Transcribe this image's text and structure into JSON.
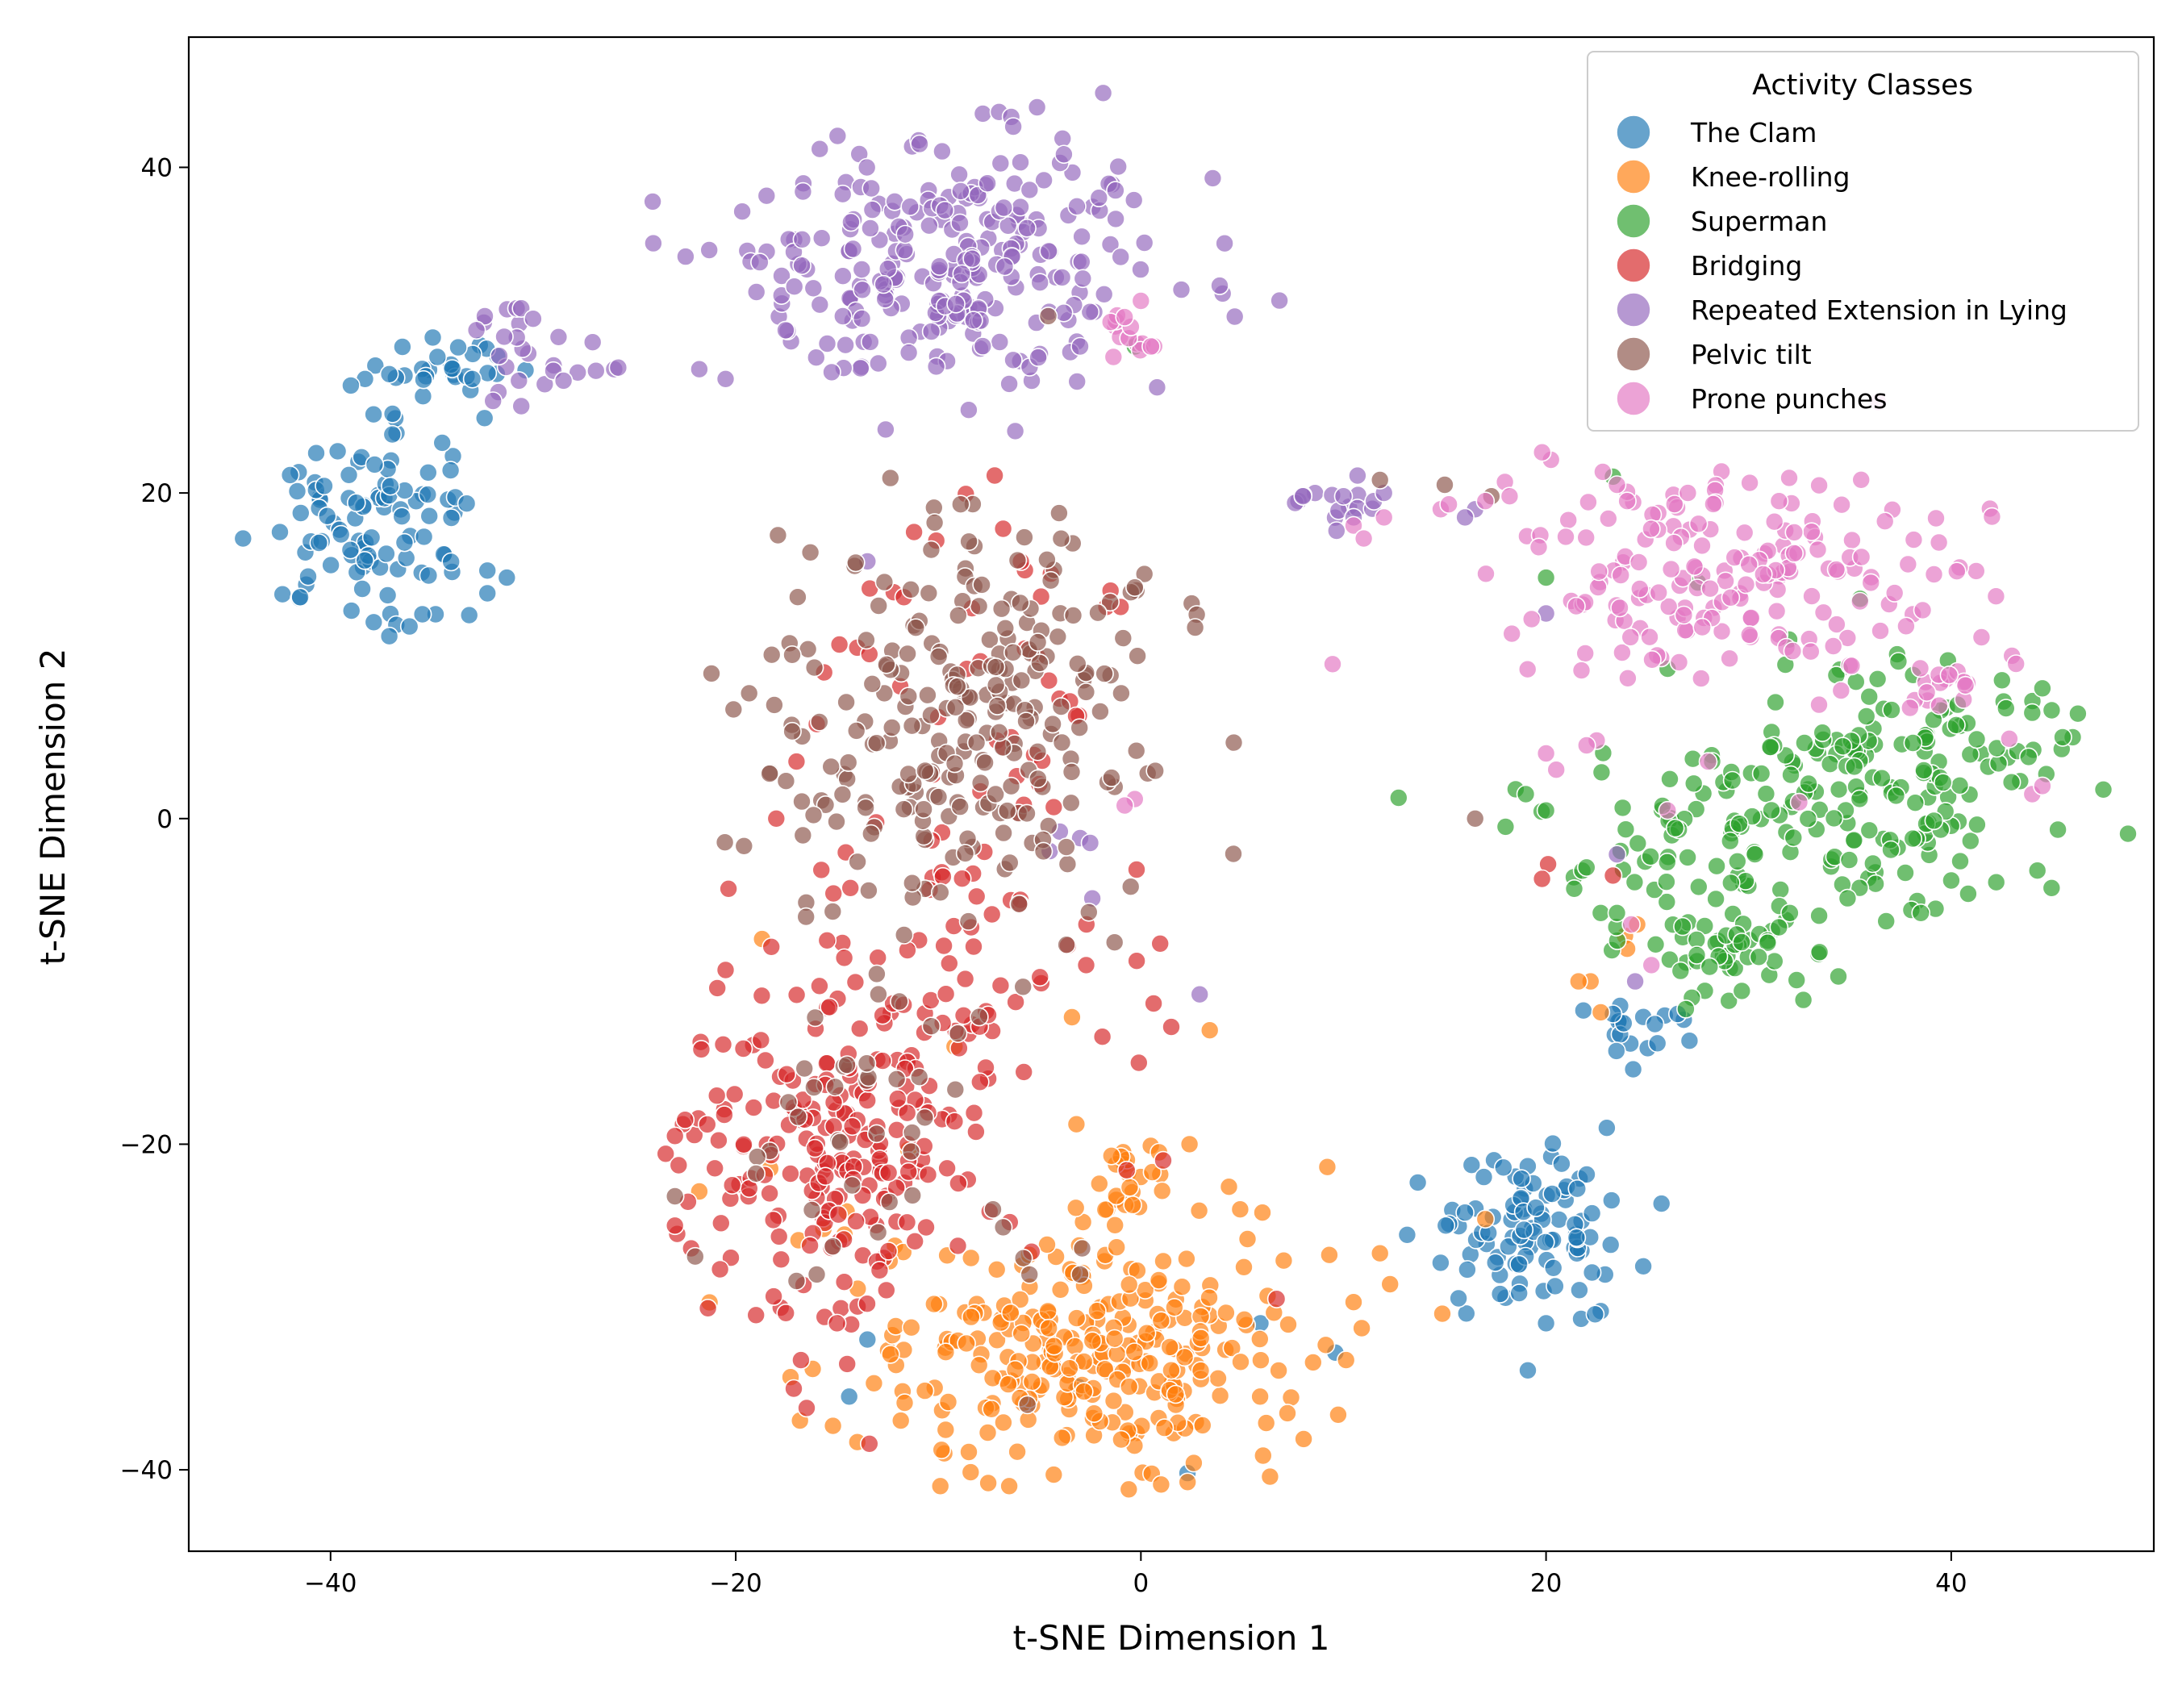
{
  "chart_data": {
    "type": "scatter",
    "title": "",
    "xlabel": "t-SNE Dimension 1",
    "ylabel": "t-SNE Dimension 2",
    "xlim": [
      -47,
      50
    ],
    "ylim": [
      -45,
      48
    ],
    "xticks": [
      -40,
      -20,
      0,
      20,
      40
    ],
    "yticks": [
      -40,
      -20,
      0,
      20,
      40
    ],
    "xtick_labels": [
      "−40",
      "−20",
      "0",
      "20",
      "40"
    ],
    "ytick_labels": [
      "−40",
      "−20",
      "0",
      "20",
      "40"
    ],
    "grid": false,
    "legend": {
      "title": "Activity Classes",
      "placement": "top-right"
    },
    "series": [
      {
        "name": "The Clam",
        "color": "#1f77b4",
        "approx_point_count": 260,
        "clusters": [
          {
            "center": [
              -38,
              18.5
            ],
            "spread": [
              2.3,
              3.3
            ],
            "weight": 0.34
          },
          {
            "center": [
              19.5,
              -25.5
            ],
            "spread": [
              2.6,
              2.6
            ],
            "weight": 0.32
          },
          {
            "center": [
              -34,
              27.5
            ],
            "spread": [
              1.6,
              0.9
            ],
            "weight": 0.09
          },
          {
            "center": [
              25,
              -13
            ],
            "spread": [
              1.3,
              1.0
            ],
            "weight": 0.05
          }
        ],
        "points": [
          [
            -42.5,
            17.6
          ],
          [
            -37.1,
            11.2
          ],
          [
            -31.3,
            14.8
          ],
          [
            -38.3,
            27.0
          ],
          [
            -37.1,
            27.3
          ],
          [
            -32.4,
            24.6
          ],
          [
            -33.0,
            27.0
          ],
          [
            -35.2,
            19.9
          ],
          [
            -39.0,
            26.6
          ],
          [
            16,
            -24.2
          ],
          [
            23,
            -19
          ],
          [
            24.8,
            -27.5
          ],
          [
            20,
            -31
          ],
          [
            23.3,
            -12.0
          ],
          [
            24.3,
            -15.4
          ],
          [
            26.5,
            -12.0
          ],
          [
            25.5,
            -13.8
          ],
          [
            5.9,
            -31.0
          ],
          [
            9.6,
            -32.8
          ],
          [
            -13.5,
            -32.0
          ],
          [
            -3.1,
            -34.9
          ],
          [
            2.3,
            -40.2
          ],
          [
            -14.4,
            -35.5
          ],
          [
            19.5,
            -23.9
          ],
          [
            -41.5,
            13.6
          ],
          [
            -36.1,
            11.8
          ]
        ]
      },
      {
        "name": "Knee-rolling",
        "color": "#ff7f0e",
        "approx_point_count": 330,
        "clusters": [
          {
            "center": [
              -3,
              -33
            ],
            "spread": [
              5.5,
              3.6
            ],
            "weight": 0.78
          },
          {
            "center": [
              -1,
              -22.5
            ],
            "spread": [
              1.6,
              1.8
            ],
            "weight": 0.08
          }
        ],
        "points": [
          [
            -18.7,
            -7.4
          ],
          [
            -21.8,
            -22.9
          ],
          [
            -18.3,
            -21.5
          ],
          [
            -16.9,
            -25.9
          ],
          [
            -16.2,
            -33.8
          ],
          [
            -9.2,
            -14.0
          ],
          [
            -3.4,
            -12.2
          ],
          [
            3.4,
            -13.0
          ],
          [
            9.2,
            -21.4
          ],
          [
            6,
            -24.2
          ],
          [
            9.3,
            -26.8
          ],
          [
            10.5,
            -29.7
          ],
          [
            11.8,
            -26.7
          ],
          [
            12.3,
            -28.6
          ],
          [
            10.9,
            -31.3
          ],
          [
            8.5,
            -33.4
          ],
          [
            6.8,
            -33.9
          ],
          [
            4.9,
            -24.0
          ],
          [
            2.4,
            -20.0
          ],
          [
            0.9,
            -20.5
          ],
          [
            -0.6,
            -41.2
          ],
          [
            1.0,
            -40.9
          ],
          [
            -6.5,
            -41.0
          ],
          [
            -4.3,
            -40.3
          ],
          [
            22.2,
            -10
          ],
          [
            21.6,
            -10
          ],
          [
            22.7,
            -11.9
          ],
          [
            23.9,
            -7.2
          ],
          [
            24.5,
            -6.5
          ],
          [
            24.0,
            -8.0
          ],
          [
            17.0,
            -24.6
          ],
          [
            -15.2,
            -37.3
          ],
          [
            -9.9,
            -41.0
          ]
        ]
      },
      {
        "name": "Superman",
        "color": "#2ca02c",
        "approx_point_count": 300,
        "clusters": [
          {
            "center": [
              37.5,
              3.5
            ],
            "spread": [
              4.0,
              3.2
            ],
            "weight": 0.45
          },
          {
            "center": [
              30,
              -3
            ],
            "spread": [
              5.5,
              3.6
            ],
            "weight": 0.35
          },
          {
            "center": [
              29,
              -8.5
            ],
            "spread": [
              2.0,
              1.2
            ],
            "weight": 0.1
          }
        ],
        "points": [
          [
            46.0,
            5.0
          ],
          [
            45.5,
            5.0
          ],
          [
            44.5,
            8.0
          ],
          [
            44.0,
            6.5
          ],
          [
            18.5,
            1.8
          ],
          [
            19.0,
            1.5
          ],
          [
            20.0,
            0.5
          ],
          [
            18.0,
            -0.5
          ],
          [
            22.0,
            -3.0
          ],
          [
            22.7,
            -5.8
          ],
          [
            23.5,
            -5.8
          ],
          [
            26.0,
            9.2
          ],
          [
            32.0,
            11.0
          ],
          [
            35.5,
            13.5
          ],
          [
            -0.3,
            29.0
          ],
          [
            23.3,
            21.0
          ],
          [
            20.0,
            14.8
          ],
          [
            30.5,
            -8.5
          ],
          [
            33.5,
            -8.2
          ],
          [
            38.5,
            -5.8
          ],
          [
            27.2,
            -11.0
          ],
          [
            26.9,
            -11.7
          ],
          [
            40.0,
            -3.8
          ],
          [
            27.5,
            14.5
          ]
        ]
      },
      {
        "name": "Bridging",
        "color": "#d62728",
        "approx_point_count": 330,
        "clusters": [
          {
            "center": [
              -15,
              -20
            ],
            "spread": [
              4.0,
              5.0
            ],
            "weight": 0.7
          },
          {
            "center": [
              -9,
              -6
            ],
            "spread": [
              3.5,
              4.0
            ],
            "weight": 0.15
          },
          {
            "center": [
              -8,
              8
            ],
            "spread": [
              3.0,
              5.0
            ],
            "weight": 0.1
          }
        ],
        "points": [
          [
            -18,
            0
          ],
          [
            -17,
            3.5
          ],
          [
            -16,
            5.8
          ],
          [
            -14,
            10.5
          ],
          [
            -13.4,
            10.1
          ],
          [
            -12.2,
            13.9
          ],
          [
            -11.7,
            13.6
          ],
          [
            -11.2,
            17.6
          ],
          [
            -6.8,
            17.8
          ],
          [
            -3.5,
            7.2
          ],
          [
            -3.2,
            6.3
          ],
          [
            -4.3,
            0.7
          ],
          [
            -3.6,
            -7.8
          ],
          [
            -2.7,
            -9.0
          ],
          [
            -1.9,
            -13.4
          ],
          [
            -0.1,
            -15.0
          ],
          [
            -0.7,
            -21.6
          ],
          [
            1.1,
            -21.0
          ],
          [
            -20.5,
            -9.3
          ],
          [
            -22.5,
            -18.5
          ],
          [
            -23.0,
            -19.5
          ],
          [
            -22.2,
            -26.4
          ],
          [
            -23.0,
            -25.0
          ],
          [
            -16.5,
            -36.2
          ],
          [
            -13.4,
            -38.4
          ],
          [
            -14.5,
            -33.5
          ],
          [
            -19.0,
            -30.5
          ],
          [
            -15.0,
            -31.0
          ],
          [
            1.5,
            -12.8
          ],
          [
            6.7,
            -29.5
          ],
          [
            20.1,
            -2.8
          ],
          [
            19.8,
            -3.7
          ],
          [
            23.3,
            -3.5
          ],
          [
            -1.7,
            13.0
          ],
          [
            -1.0,
            13.0
          ],
          [
            -1.5,
            14.0
          ]
        ]
      },
      {
        "name": "Repeated Extension in Lying",
        "color": "#9467bd",
        "approx_point_count": 330,
        "clusters": [
          {
            "center": [
              -9.5,
              34.5
            ],
            "spread": [
              5.5,
              4.0
            ],
            "weight": 0.82
          },
          {
            "center": [
              -31,
              28.5
            ],
            "spread": [
              1.5,
              1.5
            ],
            "weight": 0.06
          },
          {
            "center": [
              9.5,
              19.2
            ],
            "spread": [
              1.5,
              0.8
            ],
            "weight": 0.04
          }
        ],
        "points": [
          [
            -27.8,
            27.4
          ],
          [
            -26.9,
            27.5
          ],
          [
            -26.0,
            27.6
          ],
          [
            -25.8,
            27.7
          ],
          [
            -21.8,
            27.6
          ],
          [
            -20.5,
            27.0
          ],
          [
            -29.0,
            27.5
          ],
          [
            -28.5,
            26.9
          ],
          [
            -30.7,
            26.9
          ],
          [
            -32.8,
            30.0
          ],
          [
            -30.0,
            30.7
          ],
          [
            -12.6,
            23.9
          ],
          [
            -6.2,
            23.8
          ],
          [
            -8.5,
            25.1
          ],
          [
            -7.8,
            43.3
          ],
          [
            -7.0,
            43.4
          ],
          [
            -6.4,
            43.1
          ],
          [
            -6.3,
            42.5
          ],
          [
            -3.8,
            40.8
          ],
          [
            -1.0,
            34.5
          ],
          [
            -3.0,
            29.0
          ],
          [
            -6.5,
            26.7
          ],
          [
            8.0,
            19.8
          ],
          [
            10.0,
            19.8
          ],
          [
            11.5,
            19.5
          ],
          [
            12.0,
            20.0
          ],
          [
            10.5,
            18.5
          ],
          [
            16.5,
            19.0
          ],
          [
            16.0,
            18.5
          ],
          [
            -3.0,
            -1.2
          ],
          [
            -2.5,
            -1.5
          ],
          [
            -4.0,
            -0.8
          ],
          [
            -2.4,
            -4.9
          ],
          [
            -4.5,
            -2.0
          ],
          [
            -13.5,
            15.8
          ],
          [
            2.9,
            -10.8
          ],
          [
            23.5,
            -2.2
          ],
          [
            24.4,
            -10.0
          ],
          [
            20.0,
            12.6
          ]
        ]
      },
      {
        "name": "Pelvic tilt",
        "color": "#8c564b",
        "approx_point_count": 310,
        "clusters": [
          {
            "center": [
              -8.5,
              6
            ],
            "spread": [
              4.5,
              6.5
            ],
            "weight": 0.82
          },
          {
            "center": [
              -14,
              -18
            ],
            "spread": [
              2.5,
              4.0
            ],
            "weight": 0.1
          }
        ],
        "points": [
          [
            -8.9,
            19.3
          ],
          [
            -0.5,
            13.9
          ],
          [
            -0.3,
            14.2
          ],
          [
            -1.5,
            8.8
          ],
          [
            -1.8,
            8.9
          ],
          [
            -1.3,
            -7.6
          ],
          [
            -23.0,
            -23.2
          ],
          [
            -22.0,
            -26.9
          ],
          [
            -16.0,
            -28.0
          ],
          [
            -17.0,
            -28.4
          ],
          [
            -6.8,
            -25.1
          ],
          [
            -5.8,
            -27.0
          ],
          [
            -5.5,
            -28.0
          ],
          [
            -3.0,
            -28.0
          ],
          [
            -2.9,
            -26.4
          ],
          [
            11.8,
            20.8
          ],
          [
            15.0,
            20.5
          ],
          [
            17.3,
            19.8
          ],
          [
            16.5,
            0
          ],
          [
            -5.6,
            -36.0
          ],
          [
            -7.3,
            -24.0
          ],
          [
            -19.0,
            -21.8
          ]
        ]
      },
      {
        "name": "Prone punches",
        "color": "#e377c2",
        "approx_point_count": 240,
        "clusters": [
          {
            "center": [
              28,
              15
            ],
            "spread": [
              6.0,
              3.2
            ],
            "weight": 0.8
          },
          {
            "center": [
              -1,
              29.8
            ],
            "spread": [
              0.8,
              0.9
            ],
            "weight": 0.05
          },
          {
            "center": [
              40,
              8
            ],
            "spread": [
              2.2,
              1.2
            ],
            "weight": 0.08
          }
        ],
        "points": [
          [
            14.8,
            19.0
          ],
          [
            15.2,
            19.3
          ],
          [
            17.0,
            19.5
          ],
          [
            18.2,
            19.8
          ],
          [
            22.8,
            21.3
          ],
          [
            23.5,
            20.5
          ],
          [
            24.0,
            19.5
          ],
          [
            27.0,
            20.0
          ],
          [
            31.5,
            19.5
          ],
          [
            43.0,
            10.0
          ],
          [
            43.2,
            9.5
          ],
          [
            44.0,
            1.5
          ],
          [
            44.5,
            2.0
          ],
          [
            20.0,
            4.0
          ],
          [
            20.5,
            3.0
          ],
          [
            22.5,
            4.8
          ],
          [
            22.0,
            4.5
          ],
          [
            26.0,
            0.5
          ],
          [
            32.5,
            1.0
          ],
          [
            28.0,
            3.5
          ],
          [
            -1.5,
            30.5
          ],
          [
            -0.8,
            30.8
          ],
          [
            0.0,
            31.8
          ],
          [
            0.5,
            29.0
          ],
          [
            10.5,
            18.0
          ],
          [
            11.0,
            17.2
          ],
          [
            12.0,
            18.5
          ],
          [
            -0.3,
            1.2
          ],
          [
            -0.8,
            0.8
          ],
          [
            24.2,
            -6.5
          ],
          [
            25.2,
            -9.0
          ],
          [
            26.8,
            12.5
          ]
        ]
      }
    ]
  }
}
